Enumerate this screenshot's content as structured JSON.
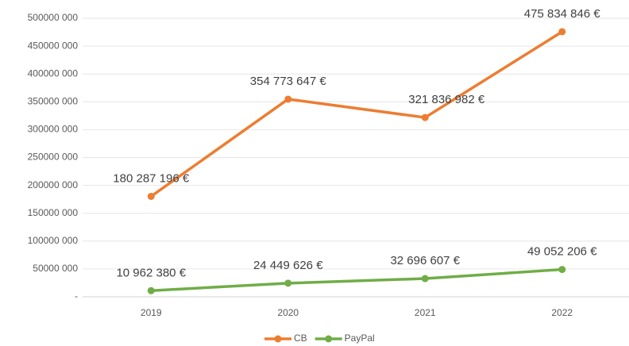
{
  "chart_data": {
    "type": "line",
    "categories": [
      "2019",
      "2020",
      "2021",
      "2022"
    ],
    "series": [
      {
        "name": "CB",
        "color": "#ed7d31",
        "values": [
          180287196,
          354773647,
          321836982,
          475834846
        ],
        "value_labels": [
          "180 287 196 €",
          "354 773 647 €",
          "321 836 982 €",
          "475 834 846 €"
        ]
      },
      {
        "name": "PayPal",
        "color": "#70ad47",
        "values": [
          10962380,
          24449626,
          32696607,
          49052206
        ],
        "value_labels": [
          "10 962 380 €",
          "24 449 626 €",
          "32 696 607 €",
          "49 052 206 €"
        ]
      }
    ],
    "ylim": [
      0,
      500000000
    ],
    "yticks": [
      {
        "value": 0,
        "label": "-"
      },
      {
        "value": 50000000,
        "label": "50000 000"
      },
      {
        "value": 100000000,
        "label": "100000 000"
      },
      {
        "value": 150000000,
        "label": "150000 000"
      },
      {
        "value": 200000000,
        "label": "200000 000"
      },
      {
        "value": 250000000,
        "label": "250000 000"
      },
      {
        "value": 300000000,
        "label": "300000 000"
      },
      {
        "value": 350000000,
        "label": "350000 000"
      },
      {
        "value": 400000000,
        "label": "400000 000"
      },
      {
        "value": 450000000,
        "label": "450000 000"
      },
      {
        "value": 500000000,
        "label": "500000 000"
      }
    ],
    "grid": true,
    "legend": "bottom"
  }
}
